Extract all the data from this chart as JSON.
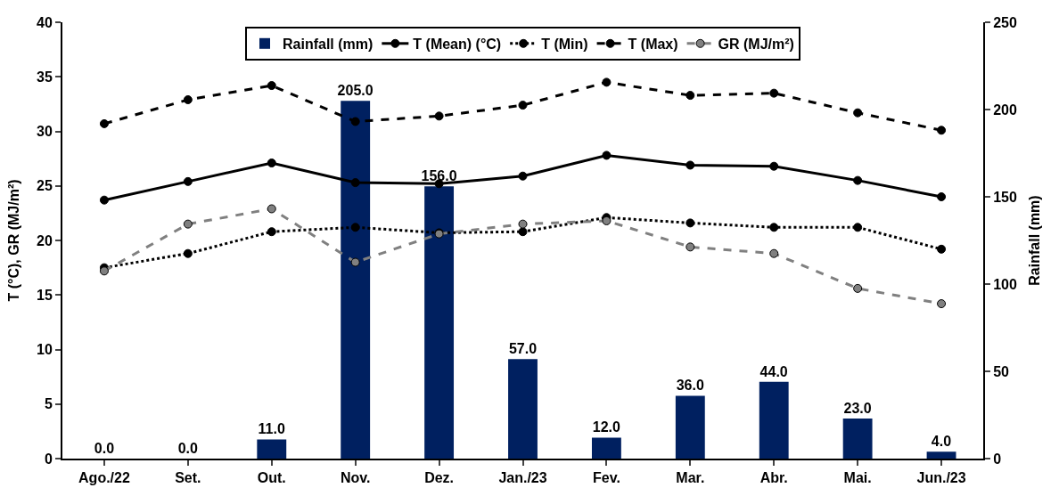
{
  "chart_data": {
    "type": "line",
    "ylabel": "T (°C), GR (MJ/m²)",
    "y2label": "Rainfall (mm)",
    "categories": [
      "Ago./22",
      "Set.",
      "Out.",
      "Nov.",
      "Dez.",
      "Jan./23",
      "Fev.",
      "Mar.",
      "Abr.",
      "Mai.",
      "Jun./23"
    ],
    "series": [
      {
        "name": "Rainfall (mm)",
        "type": "bar",
        "axis": "y2",
        "color": "#002060",
        "values": [
          0,
          0,
          11,
          205,
          156,
          57,
          12,
          36,
          44,
          23,
          4
        ],
        "value_labels": [
          "0.0",
          "0.0",
          "11.0",
          "205.0",
          "156.0",
          "57.0",
          "12.0",
          "36.0",
          "44.0",
          "23.0",
          "4.0"
        ]
      },
      {
        "name": "T (Mean) (°C)",
        "color": "#000000",
        "line_style": "solid",
        "values": [
          23.7,
          25.4,
          27.1,
          25.3,
          25.2,
          25.9,
          27.8,
          26.9,
          26.8,
          25.5,
          24.0
        ]
      },
      {
        "name": "T (Min)",
        "color": "#000000",
        "line_style": "dotted",
        "values": [
          17.5,
          18.8,
          20.8,
          21.2,
          20.7,
          20.8,
          22.1,
          21.6,
          21.2,
          21.2,
          19.2
        ]
      },
      {
        "name": "T (Max)",
        "color": "#000000",
        "line_style": "dashed",
        "values": [
          30.7,
          32.9,
          34.2,
          30.9,
          31.4,
          32.4,
          34.5,
          33.3,
          33.5,
          31.7,
          30.1
        ]
      },
      {
        "name": "GR (MJ/m²)",
        "color": "#808080",
        "line_style": "dashed",
        "values": [
          17.2,
          21.5,
          22.9,
          18.0,
          20.6,
          21.5,
          21.8,
          19.4,
          18.8,
          15.6,
          14.2
        ]
      }
    ],
    "ylim": [
      0,
      40
    ],
    "yticks": [
      0,
      5,
      10,
      15,
      20,
      25,
      30,
      35,
      40
    ],
    "y2lim": [
      0,
      250
    ],
    "y2ticks": [
      0,
      50,
      100,
      150,
      200,
      250
    ],
    "marker": "circle",
    "legend": "top"
  }
}
